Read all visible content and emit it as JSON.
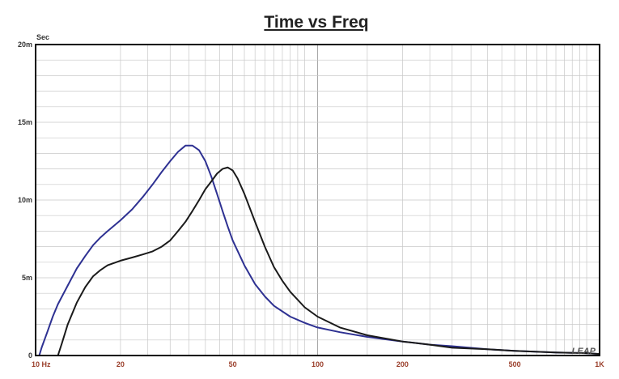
{
  "chart_data": {
    "type": "line",
    "title": "Time vs Freq",
    "ylabel": "Sec",
    "xscale": "log",
    "xlim": [
      10,
      1000
    ],
    "ylim": [
      0,
      0.02
    ],
    "grid": true,
    "watermark": "LEAP",
    "yticks": [
      {
        "value": 0,
        "label": "0"
      },
      {
        "value": 0.005,
        "label": "5m"
      },
      {
        "value": 0.01,
        "label": "10m"
      },
      {
        "value": 0.015,
        "label": "15m"
      },
      {
        "value": 0.02,
        "label": "20m"
      }
    ],
    "xticks": [
      {
        "value": 10,
        "label": "10 Hz"
      },
      {
        "value": 20,
        "label": "20"
      },
      {
        "value": 50,
        "label": "50"
      },
      {
        "value": 100,
        "label": "100"
      },
      {
        "value": 200,
        "label": "200"
      },
      {
        "value": 500,
        "label": "500"
      },
      {
        "value": 1000,
        "label": "1K"
      }
    ],
    "series": [
      {
        "color": "#2e3192",
        "points": [
          [
            10.3,
            0
          ],
          [
            10.5,
            0.0005
          ],
          [
            11,
            0.0015
          ],
          [
            11.5,
            0.0025
          ],
          [
            12,
            0.0033
          ],
          [
            13,
            0.0045
          ],
          [
            14,
            0.0056
          ],
          [
            15,
            0.0064
          ],
          [
            16,
            0.0071
          ],
          [
            17,
            0.0076
          ],
          [
            18,
            0.008
          ],
          [
            20,
            0.0087
          ],
          [
            22,
            0.0094
          ],
          [
            24,
            0.0102
          ],
          [
            26,
            0.011
          ],
          [
            28,
            0.0118
          ],
          [
            30,
            0.0125
          ],
          [
            32,
            0.0131
          ],
          [
            34,
            0.0135
          ],
          [
            36,
            0.0135
          ],
          [
            38,
            0.0132
          ],
          [
            40,
            0.0125
          ],
          [
            42,
            0.0115
          ],
          [
            44,
            0.0104
          ],
          [
            46,
            0.0093
          ],
          [
            48,
            0.0083
          ],
          [
            50,
            0.0074
          ],
          [
            55,
            0.0058
          ],
          [
            60,
            0.0046
          ],
          [
            65,
            0.0038
          ],
          [
            70,
            0.0032
          ],
          [
            80,
            0.0025
          ],
          [
            90,
            0.0021
          ],
          [
            100,
            0.0018
          ],
          [
            120,
            0.0015
          ],
          [
            150,
            0.0012
          ],
          [
            200,
            0.0009
          ],
          [
            250,
            0.0007
          ],
          [
            300,
            0.0006
          ],
          [
            400,
            0.0004
          ],
          [
            500,
            0.0003
          ],
          [
            700,
            0.0002
          ],
          [
            900,
            0.00015
          ],
          [
            1000,
            0.0001
          ]
        ]
      },
      {
        "color": "#1a1a1a",
        "points": [
          [
            12,
            0
          ],
          [
            12.4,
            0.0008
          ],
          [
            13,
            0.002
          ],
          [
            14,
            0.0034
          ],
          [
            15,
            0.0044
          ],
          [
            16,
            0.0051
          ],
          [
            17,
            0.0055
          ],
          [
            18,
            0.0058
          ],
          [
            20,
            0.0061
          ],
          [
            22,
            0.0063
          ],
          [
            24,
            0.0065
          ],
          [
            26,
            0.0067
          ],
          [
            28,
            0.007
          ],
          [
            30,
            0.0074
          ],
          [
            32,
            0.008
          ],
          [
            34,
            0.0086
          ],
          [
            36,
            0.0093
          ],
          [
            38,
            0.01
          ],
          [
            40,
            0.0107
          ],
          [
            42,
            0.0112
          ],
          [
            44,
            0.0117
          ],
          [
            46,
            0.012
          ],
          [
            48,
            0.0121
          ],
          [
            50,
            0.0119
          ],
          [
            52,
            0.0114
          ],
          [
            55,
            0.0104
          ],
          [
            60,
            0.0086
          ],
          [
            65,
            0.007
          ],
          [
            70,
            0.0057
          ],
          [
            75,
            0.0048
          ],
          [
            80,
            0.0041
          ],
          [
            90,
            0.0031
          ],
          [
            100,
            0.0025
          ],
          [
            120,
            0.0018
          ],
          [
            150,
            0.0013
          ],
          [
            200,
            0.0009
          ],
          [
            250,
            0.0007
          ],
          [
            300,
            0.0005
          ],
          [
            400,
            0.0004
          ],
          [
            500,
            0.0003
          ],
          [
            700,
            0.0002
          ],
          [
            900,
            0.00015
          ],
          [
            1000,
            0.0001
          ]
        ]
      }
    ]
  }
}
